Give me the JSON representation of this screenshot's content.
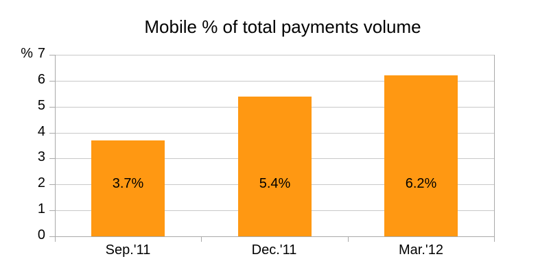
{
  "chart_data": {
    "type": "bar",
    "title": "Mobile % of total payments volume",
    "categories": [
      "Sep.'11",
      "Dec.'11",
      "Mar.'12"
    ],
    "values": [
      3.7,
      5.4,
      6.2
    ],
    "data_labels": [
      "3.7%",
      "5.4%",
      "6.2%"
    ],
    "ylabel": "%",
    "xlabel": "",
    "ylim": [
      0,
      7
    ],
    "yticks": [
      0,
      1,
      2,
      3,
      4,
      5,
      6,
      7
    ],
    "grid": true,
    "legend": false,
    "colors": {
      "bar": "#FF9812",
      "gridline": "#C8C8C8",
      "axis": "#A9A9A9",
      "text": "#000000",
      "background": "#FFFFFF"
    }
  }
}
